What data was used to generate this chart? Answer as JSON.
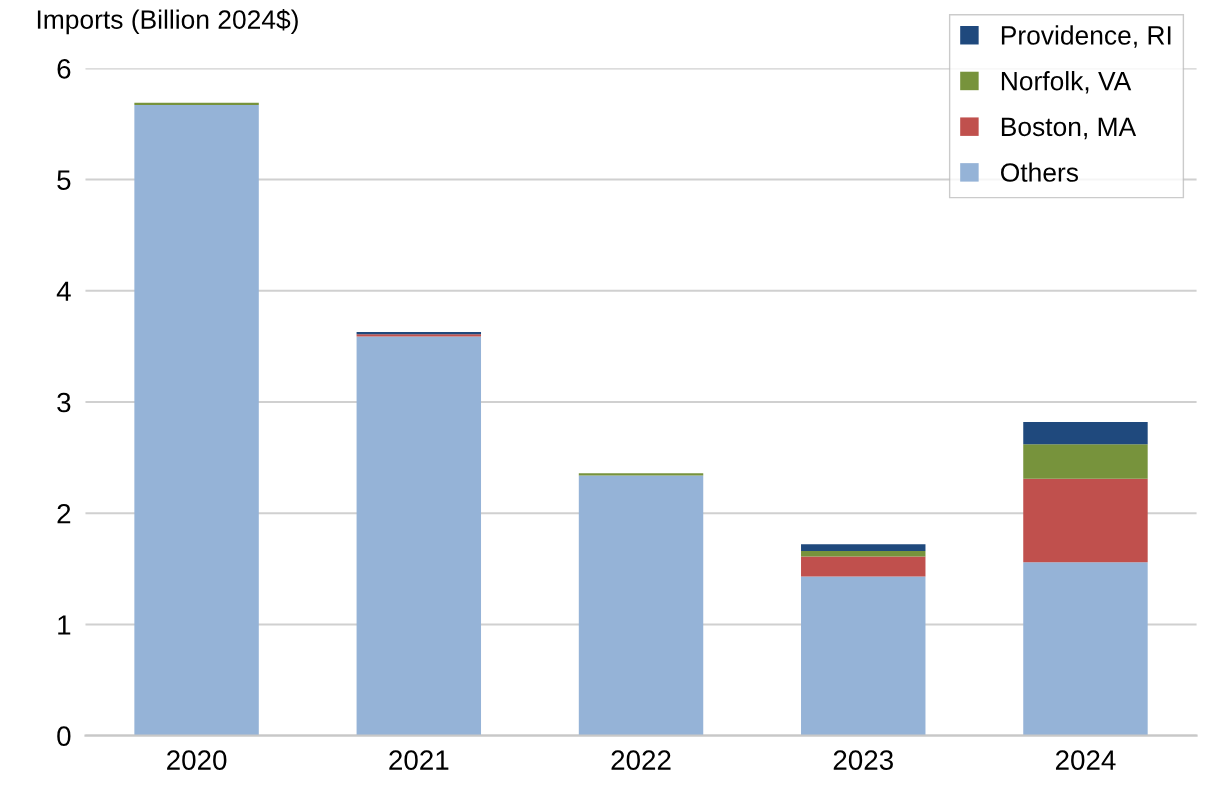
{
  "chart_data": {
    "type": "bar",
    "stacked": true,
    "ylabel": "Imports (Billion 2024$)",
    "categories": [
      "2020",
      "2021",
      "2022",
      "2023",
      "2024"
    ],
    "series": [
      {
        "name": "Others",
        "color": "#95b3d7",
        "values": [
          5.67,
          3.59,
          2.34,
          1.43,
          1.56
        ]
      },
      {
        "name": "Boston, MA",
        "color": "#c0504d",
        "values": [
          0,
          0.02,
          0,
          0.18,
          0.75
        ]
      },
      {
        "name": "Norfolk, VA",
        "color": "#77933c",
        "values": [
          0.02,
          0,
          0.02,
          0.05,
          0.31
        ]
      },
      {
        "name": "Providence, RI",
        "color": "#1f497d",
        "values": [
          0,
          0.02,
          0,
          0.06,
          0.2
        ]
      }
    ],
    "ylim": [
      0,
      6
    ],
    "yticks": [
      0,
      1,
      2,
      3,
      4,
      5,
      6
    ],
    "grid": "y",
    "legend": "top right"
  }
}
